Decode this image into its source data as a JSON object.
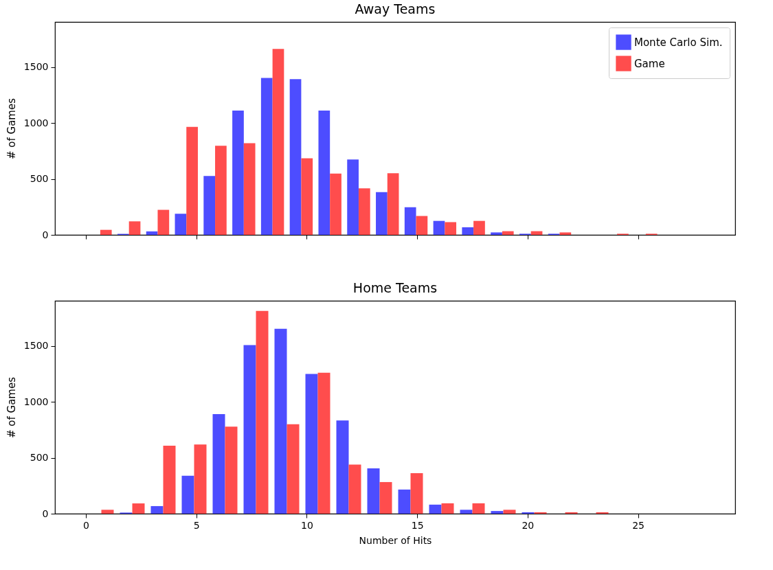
{
  "chart_data": [
    {
      "type": "histogram",
      "title": "Away Teams",
      "ylabel": "# of Games",
      "bins": [
        0,
        1.3,
        2.6,
        3.9,
        5.2,
        6.5,
        7.8,
        9.1,
        10.4,
        11.7,
        13,
        14.3,
        15.6,
        16.9,
        18.2,
        19.5,
        20.8,
        22.1,
        23.4,
        24.7,
        26
      ],
      "series": [
        {
          "name": "Monte Carlo Sim.",
          "color": "#4d4dff",
          "values": [
            0,
            9,
            31,
            189,
            527,
            1113,
            1404,
            1393,
            1113,
            674,
            382,
            248,
            125,
            68,
            22,
            10,
            10,
            0,
            0,
            0
          ]
        },
        {
          "name": "Game",
          "color": "#ff4d4d",
          "values": [
            45,
            121,
            224,
            967,
            797,
            820,
            1664,
            685,
            549,
            417,
            551,
            169,
            114,
            125,
            33,
            33,
            22,
            0,
            10,
            10
          ]
        }
      ],
      "xlim": [
        -1.4,
        29.4
      ],
      "xticks": [
        0,
        5,
        10,
        15,
        20,
        25
      ],
      "ylim": [
        0,
        1905
      ],
      "yticks": [
        0,
        500,
        1000,
        1500
      ],
      "tick_labels": "y",
      "legend": "top right",
      "grid": false
    },
    {
      "type": "histogram",
      "title": "Home Teams",
      "xlabel": "Number of Hits",
      "ylabel": "# of Games",
      "bins": [
        0,
        1.4,
        2.8,
        4.2,
        5.6,
        7,
        8.4,
        9.8,
        11.2,
        12.6,
        14,
        15.4,
        16.8,
        18.2,
        19.6,
        21,
        22.4,
        23.8,
        25.2,
        26.6,
        28
      ],
      "series": [
        {
          "color": "#4d4dff",
          "values": [
            0,
            10,
            68,
            340,
            891,
            1508,
            1655,
            1250,
            834,
            406,
            216,
            81,
            35,
            24,
            13,
            0,
            0,
            0,
            0,
            0
          ]
        },
        {
          "color": "#ff4d4d",
          "values": [
            35,
            92,
            608,
            619,
            779,
            1815,
            801,
            1262,
            439,
            283,
            363,
            93,
            93,
            35,
            13,
            13,
            13,
            0,
            0,
            0
          ]
        }
      ],
      "xlim": [
        -1.4,
        29.4
      ],
      "xticks": [
        0,
        5,
        10,
        15,
        20,
        25
      ],
      "ylim": [
        0,
        1905
      ],
      "yticks": [
        0,
        500,
        1000,
        1500
      ],
      "legend": false,
      "grid": false
    }
  ]
}
